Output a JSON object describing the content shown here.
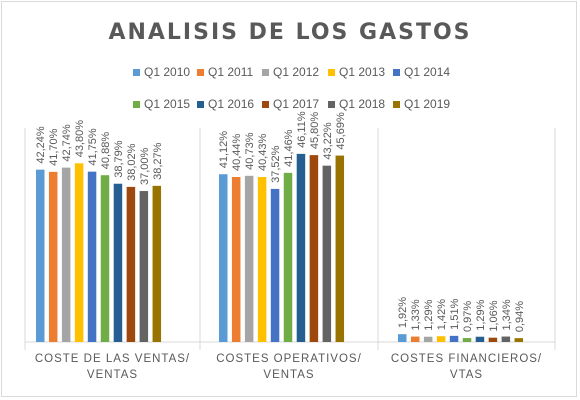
{
  "chart_data": {
    "type": "bar",
    "title": "ANALISIS DE LOS GASTOS",
    "legend_position": "top",
    "grid": false,
    "ylim": [
      0,
      60
    ],
    "categories": [
      [
        "COSTE DE LAS VENTAS/",
        "VENTAS"
      ],
      [
        "COSTES OPERATIVOS/",
        "VENTAS"
      ],
      [
        "COSTES FINANCIEROS/",
        "VTAS"
      ]
    ],
    "series": [
      {
        "name": "Q1 2010",
        "color": "#5b9bd5",
        "values": [
          42.24,
          41.12,
          1.92
        ],
        "labels": [
          "42,24%",
          "41,12%",
          "1,92%"
        ]
      },
      {
        "name": "Q1 2011",
        "color": "#ed7d31",
        "values": [
          41.7,
          40.44,
          1.33
        ],
        "labels": [
          "41,70%",
          "40,44%",
          "1,33%"
        ]
      },
      {
        "name": "Q1 2012",
        "color": "#a5a5a5",
        "values": [
          42.74,
          40.73,
          1.29
        ],
        "labels": [
          "42,74%",
          "40,73%",
          "1,29%"
        ]
      },
      {
        "name": "Q1 2013",
        "color": "#ffc000",
        "values": [
          43.8,
          40.43,
          1.42
        ],
        "labels": [
          "43,80%",
          "40,43%",
          "1,42%"
        ]
      },
      {
        "name": "Q1 2014",
        "color": "#4472c4",
        "values": [
          41.75,
          37.52,
          1.51
        ],
        "labels": [
          "41,75%",
          "37,52%",
          "1,51%"
        ]
      },
      {
        "name": "Q1 2015",
        "color": "#70ad47",
        "values": [
          40.88,
          41.46,
          0.97
        ],
        "labels": [
          "40,88%",
          "41,46%",
          "0,97%"
        ]
      },
      {
        "name": "Q1 2016",
        "color": "#255e91",
        "values": [
          38.79,
          46.11,
          1.29
        ],
        "labels": [
          "38,79%",
          "46,11%",
          "1,29%"
        ]
      },
      {
        "name": "Q1 2017",
        "color": "#9e480e",
        "values": [
          38.02,
          45.8,
          1.06
        ],
        "labels": [
          "38,02%",
          "45,80%",
          "1,06%"
        ]
      },
      {
        "name": "Q1 2018",
        "color": "#636363",
        "values": [
          37.0,
          43.22,
          1.34
        ],
        "labels": [
          "37,00%",
          "43,22%",
          "1,34%"
        ]
      },
      {
        "name": "Q1 2019",
        "color": "#997300",
        "values": [
          38.27,
          45.69,
          0.94
        ],
        "labels": [
          "38,27%",
          "45,69%",
          "0,94%"
        ]
      }
    ]
  }
}
